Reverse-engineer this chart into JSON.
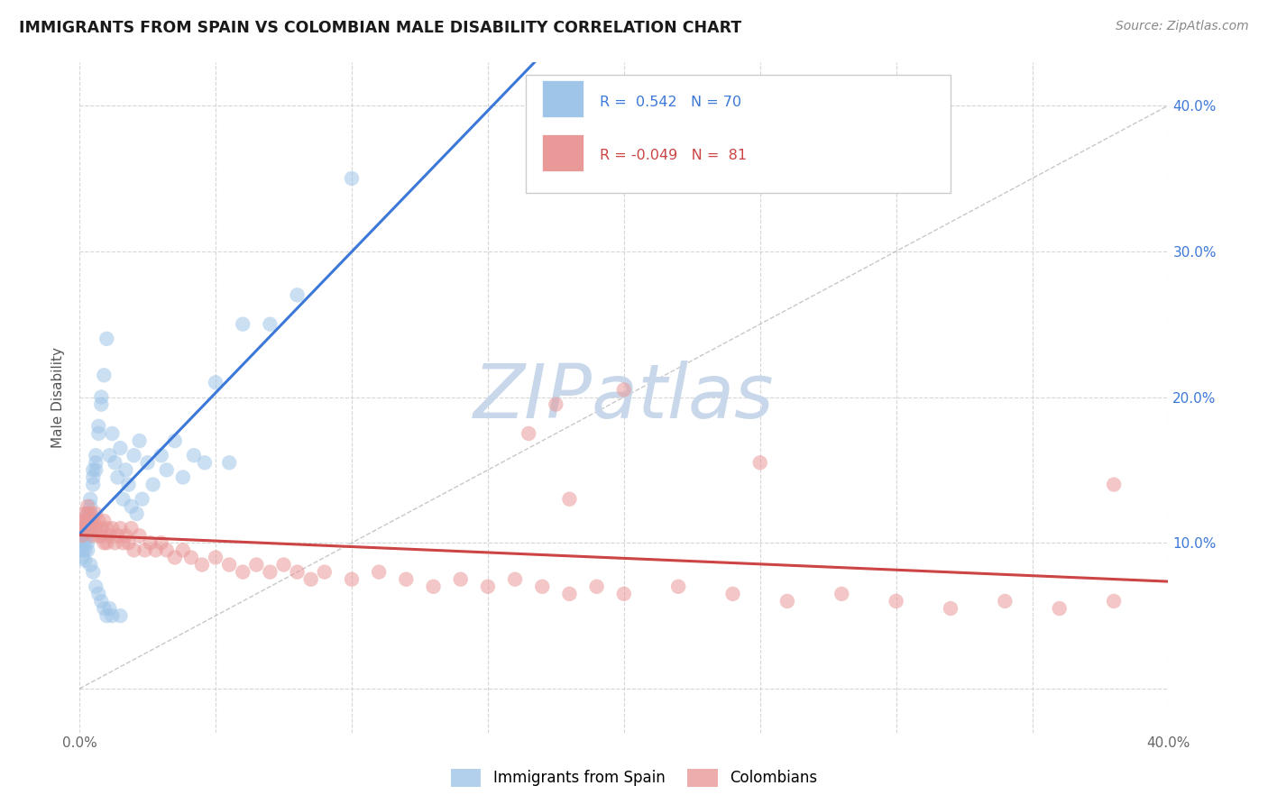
{
  "title": "IMMIGRANTS FROM SPAIN VS COLOMBIAN MALE DISABILITY CORRELATION CHART",
  "source_text": "Source: ZipAtlas.com",
  "ylabel": "Male Disability",
  "xlim": [
    0.0,
    0.4
  ],
  "ylim": [
    -0.03,
    0.43
  ],
  "xticks": [
    0.0,
    0.05,
    0.1,
    0.15,
    0.2,
    0.25,
    0.3,
    0.35,
    0.4
  ],
  "yticks": [
    0.0,
    0.1,
    0.2,
    0.3,
    0.4
  ],
  "R_blue": 0.542,
  "N_blue": 70,
  "R_pink": -0.049,
  "N_pink": 81,
  "blue_color": "#9fc5e8",
  "pink_color": "#ea9999",
  "blue_line_color": "#3c78d8",
  "pink_line_color": "#cc4444",
  "watermark_color": "#c8d8ea",
  "background_color": "#ffffff",
  "grid_color": "#cccccc",
  "legend_label_blue": "Immigrants from Spain",
  "legend_label_pink": "Colombians",
  "blue_scatter_x": [
    0.001,
    0.001,
    0.001,
    0.001,
    0.001,
    0.002,
    0.002,
    0.002,
    0.002,
    0.002,
    0.002,
    0.003,
    0.003,
    0.003,
    0.003,
    0.003,
    0.003,
    0.004,
    0.004,
    0.004,
    0.004,
    0.004,
    0.005,
    0.005,
    0.005,
    0.005,
    0.006,
    0.006,
    0.006,
    0.006,
    0.007,
    0.007,
    0.007,
    0.008,
    0.008,
    0.008,
    0.009,
    0.009,
    0.01,
    0.01,
    0.011,
    0.011,
    0.012,
    0.012,
    0.013,
    0.014,
    0.015,
    0.015,
    0.016,
    0.017,
    0.018,
    0.019,
    0.02,
    0.021,
    0.022,
    0.023,
    0.025,
    0.027,
    0.03,
    0.032,
    0.035,
    0.038,
    0.042,
    0.046,
    0.05,
    0.055,
    0.06,
    0.07,
    0.08,
    0.1
  ],
  "blue_scatter_y": [
    0.1,
    0.105,
    0.11,
    0.095,
    0.09,
    0.115,
    0.11,
    0.105,
    0.1,
    0.095,
    0.088,
    0.12,
    0.115,
    0.11,
    0.105,
    0.1,
    0.095,
    0.13,
    0.125,
    0.12,
    0.115,
    0.085,
    0.15,
    0.145,
    0.14,
    0.08,
    0.16,
    0.155,
    0.15,
    0.07,
    0.18,
    0.175,
    0.065,
    0.2,
    0.195,
    0.06,
    0.215,
    0.055,
    0.24,
    0.05,
    0.16,
    0.055,
    0.175,
    0.05,
    0.155,
    0.145,
    0.165,
    0.05,
    0.13,
    0.15,
    0.14,
    0.125,
    0.16,
    0.12,
    0.17,
    0.13,
    0.155,
    0.14,
    0.16,
    0.15,
    0.17,
    0.145,
    0.16,
    0.155,
    0.21,
    0.155,
    0.25,
    0.25,
    0.27,
    0.35
  ],
  "pink_scatter_x": [
    0.001,
    0.001,
    0.001,
    0.002,
    0.002,
    0.002,
    0.003,
    0.003,
    0.003,
    0.003,
    0.004,
    0.004,
    0.004,
    0.005,
    0.005,
    0.005,
    0.006,
    0.006,
    0.007,
    0.007,
    0.008,
    0.008,
    0.009,
    0.009,
    0.01,
    0.01,
    0.011,
    0.012,
    0.013,
    0.014,
    0.015,
    0.016,
    0.017,
    0.018,
    0.019,
    0.02,
    0.022,
    0.024,
    0.026,
    0.028,
    0.03,
    0.032,
    0.035,
    0.038,
    0.041,
    0.045,
    0.05,
    0.055,
    0.06,
    0.065,
    0.07,
    0.075,
    0.08,
    0.085,
    0.09,
    0.1,
    0.11,
    0.12,
    0.13,
    0.14,
    0.15,
    0.16,
    0.17,
    0.18,
    0.19,
    0.2,
    0.22,
    0.24,
    0.26,
    0.28,
    0.3,
    0.32,
    0.34,
    0.36,
    0.38,
    0.165,
    0.18,
    0.38,
    0.25,
    0.2,
    0.175
  ],
  "pink_scatter_y": [
    0.115,
    0.11,
    0.105,
    0.12,
    0.115,
    0.11,
    0.125,
    0.12,
    0.115,
    0.11,
    0.12,
    0.115,
    0.11,
    0.115,
    0.11,
    0.105,
    0.12,
    0.11,
    0.115,
    0.105,
    0.11,
    0.105,
    0.115,
    0.1,
    0.11,
    0.1,
    0.105,
    0.11,
    0.1,
    0.105,
    0.11,
    0.1,
    0.105,
    0.1,
    0.11,
    0.095,
    0.105,
    0.095,
    0.1,
    0.095,
    0.1,
    0.095,
    0.09,
    0.095,
    0.09,
    0.085,
    0.09,
    0.085,
    0.08,
    0.085,
    0.08,
    0.085,
    0.08,
    0.075,
    0.08,
    0.075,
    0.08,
    0.075,
    0.07,
    0.075,
    0.07,
    0.075,
    0.07,
    0.065,
    0.07,
    0.065,
    0.07,
    0.065,
    0.06,
    0.065,
    0.06,
    0.055,
    0.06,
    0.055,
    0.06,
    0.175,
    0.13,
    0.14,
    0.155,
    0.205,
    0.195
  ]
}
